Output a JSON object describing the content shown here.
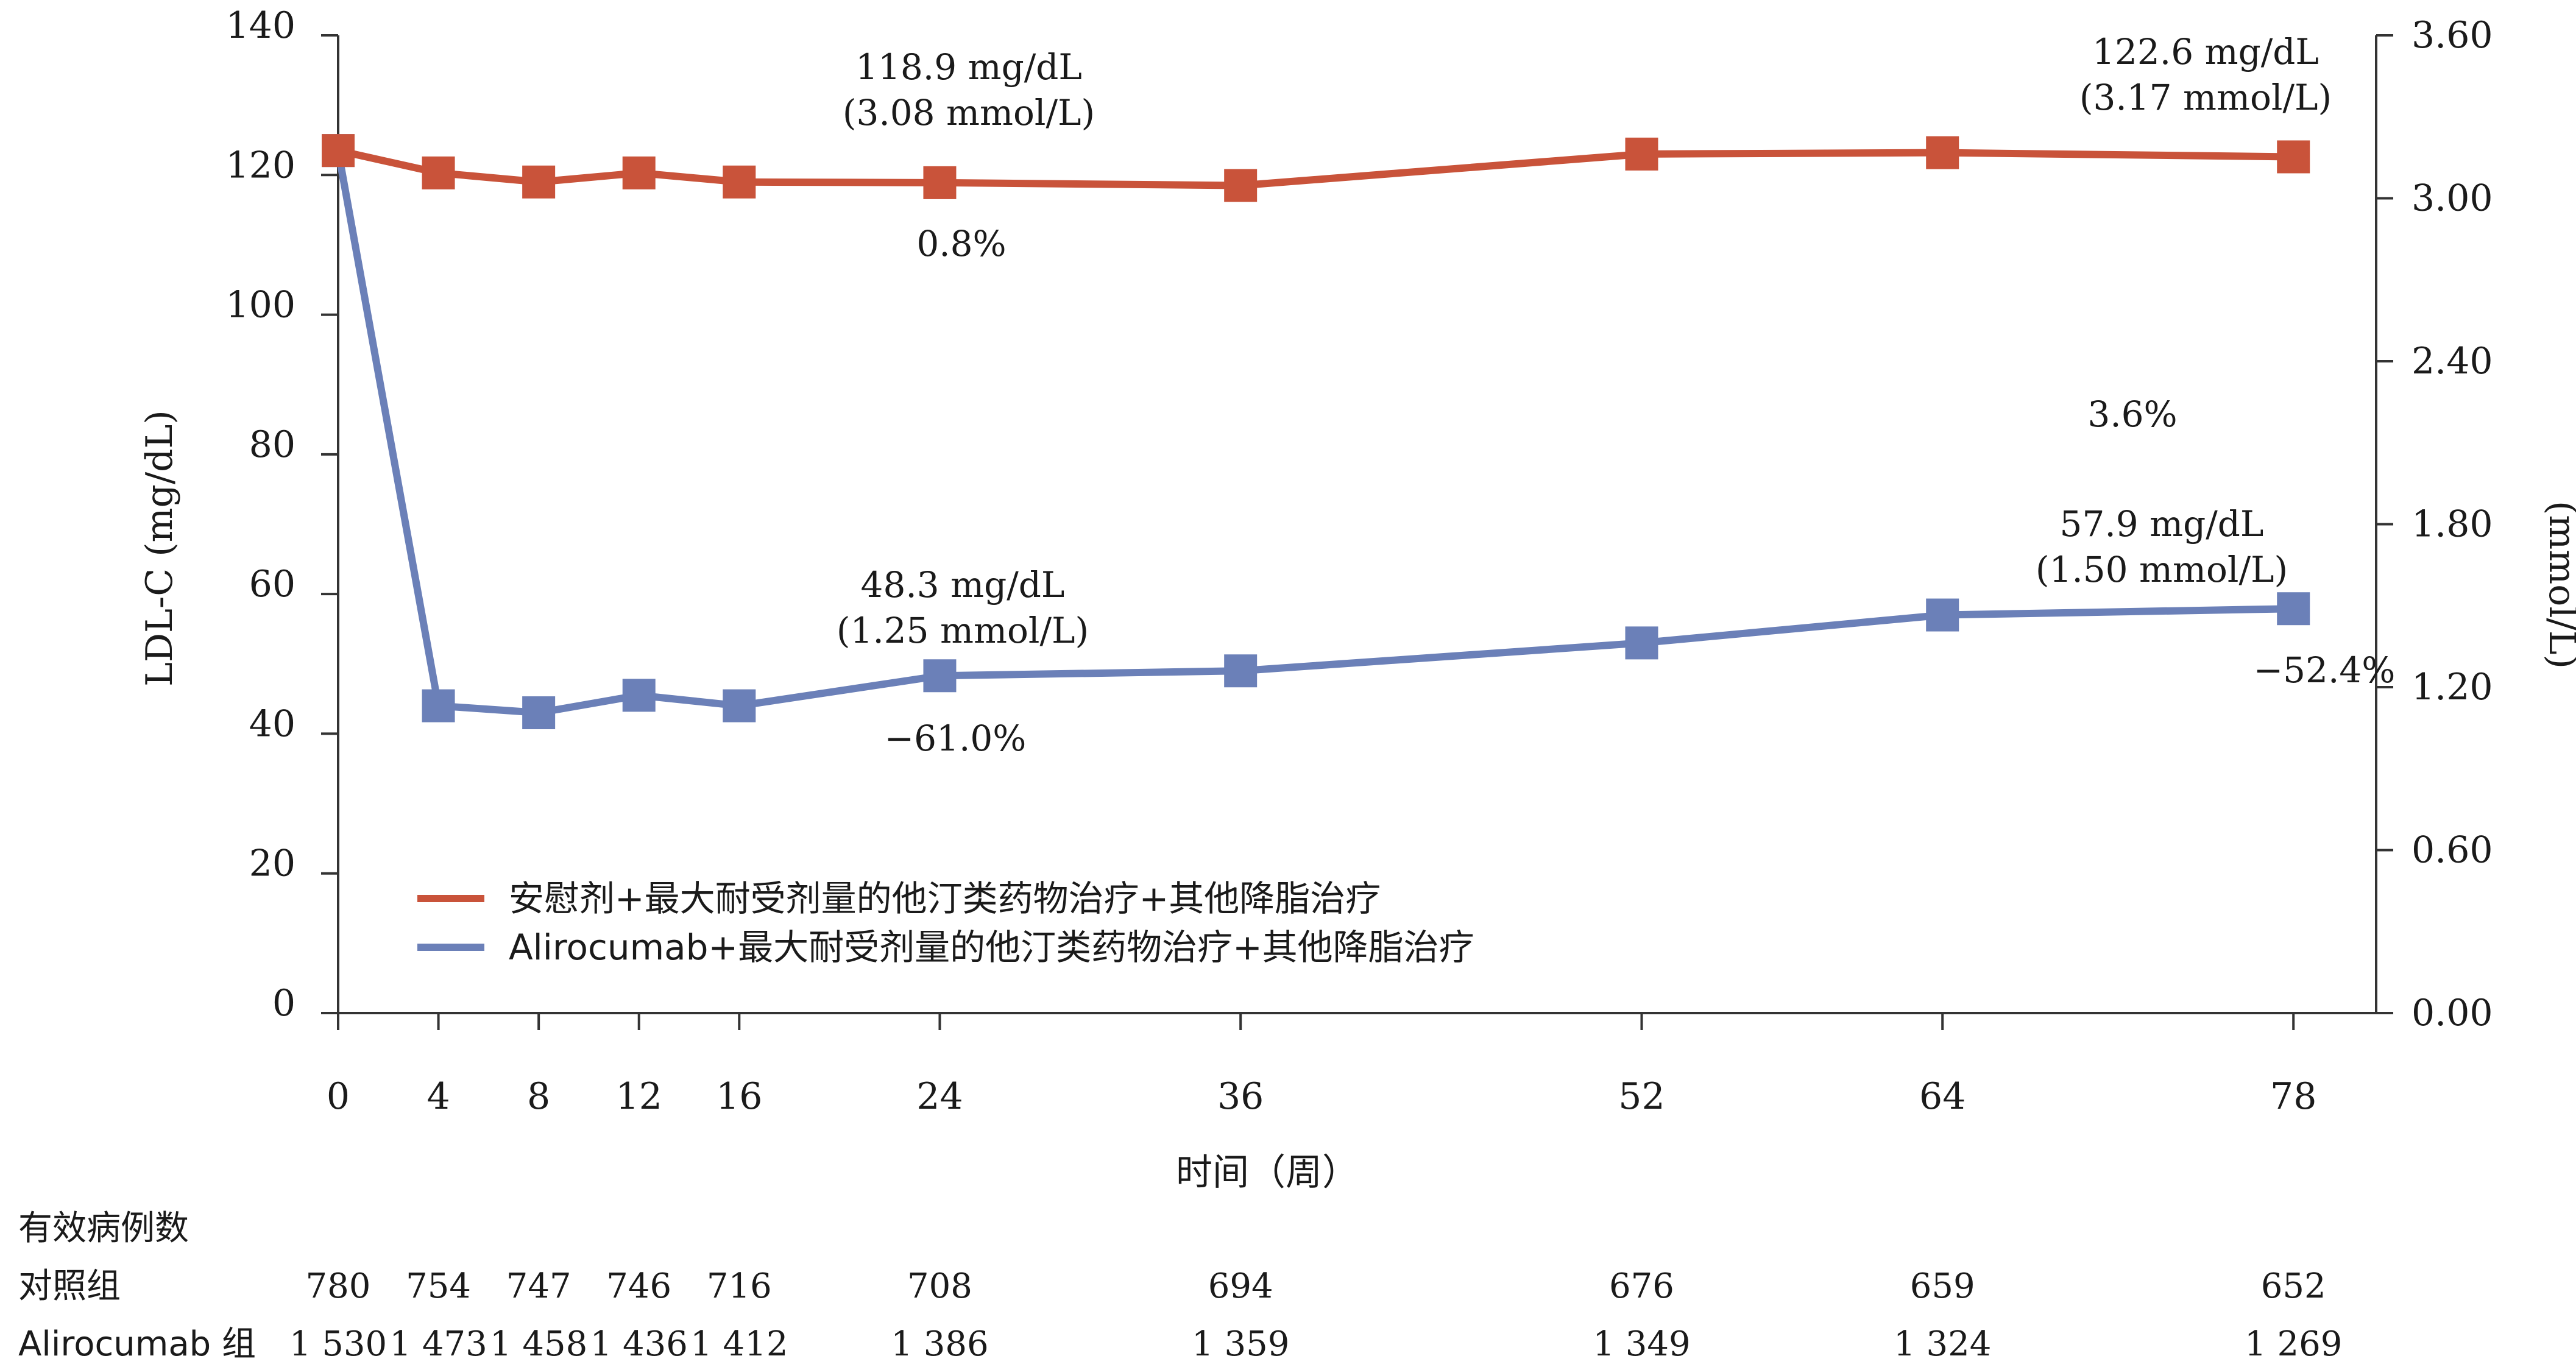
{
  "chart_data": {
    "type": "line",
    "xlabel": "时间（周）",
    "ylabel": "LDL-C (mg/dL)",
    "y2label": "(mmol/L)",
    "x": [
      0,
      4,
      8,
      12,
      16,
      24,
      36,
      52,
      64,
      78
    ],
    "x_ticks": [
      "0",
      "4",
      "8",
      "12",
      "16",
      "24",
      "36",
      "52",
      "64",
      "78"
    ],
    "ylim": [
      0,
      140
    ],
    "y_ticks": [
      "0",
      "20",
      "40",
      "60",
      "80",
      "100",
      "120",
      "140"
    ],
    "y2lim": [
      0,
      3.6
    ],
    "y2_ticks": [
      "0.00",
      "0.60",
      "1.20",
      "1.80",
      "2.40",
      "3.00",
      "3.60"
    ],
    "grid": false,
    "legend_position": "bottom-left",
    "series": [
      {
        "name": "安慰剂+最大耐受剂量的他汀类药物治疗+其他降脂治疗",
        "color": "#c9533a",
        "marker": "square",
        "values": [
          123.5,
          120.3,
          119.0,
          120.3,
          119.0,
          118.9,
          118.5,
          123.0,
          123.2,
          122.6
        ]
      },
      {
        "name": "Alirocumab+最大耐受剂量的他汀类药物治疗+其他降脂治疗",
        "color": "#6b80b8",
        "marker": "square",
        "values": [
          123.5,
          44.0,
          43.0,
          45.5,
          44.0,
          48.3,
          49.0,
          53.0,
          57.0,
          57.9
        ]
      }
    ],
    "annotations": [
      {
        "lines": [
          "118.9 mg/dL",
          "(3.08 mmol/L)"
        ]
      },
      {
        "lines": [
          "0.8%"
        ]
      },
      {
        "lines": [
          "122.6 mg/dL",
          "(3.17 mmol/L)"
        ]
      },
      {
        "lines": [
          "3.6%"
        ]
      },
      {
        "lines": [
          "48.3 mg/dL",
          "(1.25 mmol/L)"
        ]
      },
      {
        "lines": [
          "−61.0%"
        ]
      },
      {
        "lines": [
          "57.9 mg/dL",
          "(1.50 mmol/L)"
        ]
      },
      {
        "lines": [
          "−52.4%"
        ]
      }
    ]
  },
  "patients_table": {
    "title": "有效病例数",
    "rows": [
      {
        "label": "对照组",
        "values": [
          "780",
          "754",
          "747",
          "746",
          "716",
          "708",
          "694",
          "676",
          "659",
          "652"
        ]
      },
      {
        "label": "Alirocumab 组",
        "values": [
          "1 530",
          "1 473",
          "1 458",
          "1 436",
          "1 412",
          "1 386",
          "1 359",
          "1 349",
          "1 324",
          "1 269"
        ]
      }
    ]
  }
}
